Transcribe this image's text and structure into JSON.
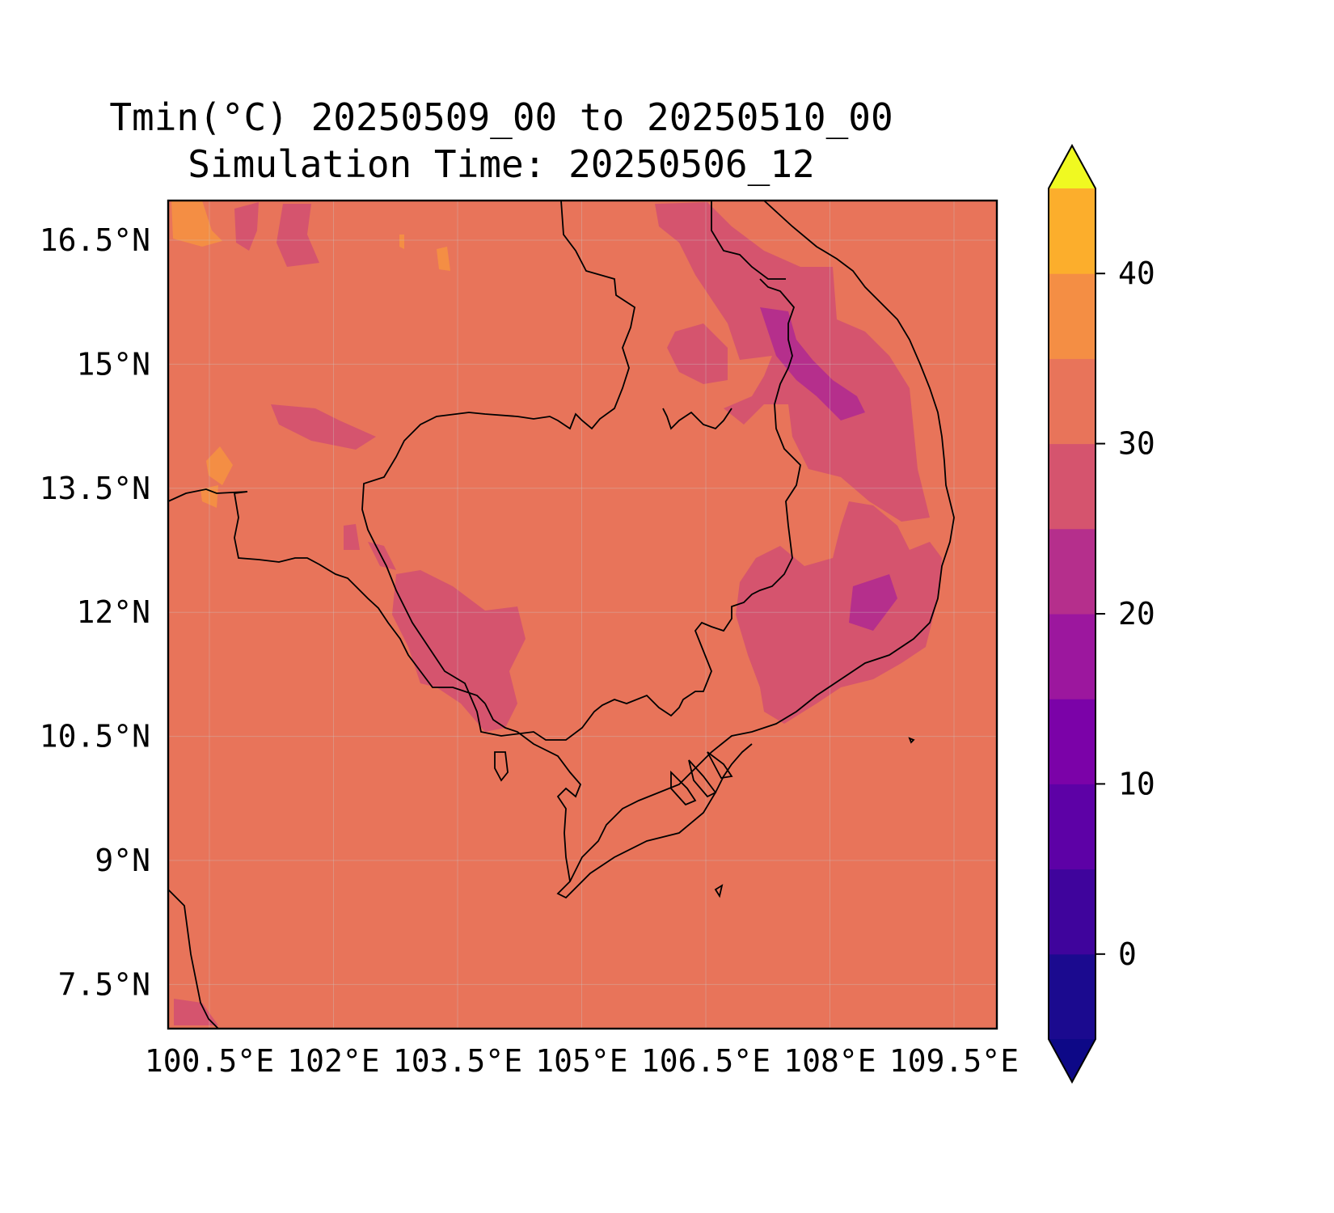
{
  "title": "Tmin(°C) 20250509_00 to 20250510_00",
  "subtitle": "Simulation Time: 20250506_12",
  "map": {
    "lon_ticks": [
      "100.5°E",
      "102°E",
      "103.5°E",
      "105°E",
      "106.5°E",
      "108°E",
      "109.5°E"
    ],
    "lat_ticks": [
      "16.5°N",
      "15°N",
      "13.5°N",
      "12°N",
      "10.5°N",
      "9°N",
      "7.5°N"
    ],
    "lon_range": [
      100,
      110
    ],
    "lat_range": [
      7,
      17
    ],
    "grid": true,
    "background_color": "#e8745a"
  },
  "colorbar": {
    "ticks": [
      "0",
      "10",
      "20",
      "30",
      "40"
    ],
    "levels": [
      -5,
      0,
      5,
      10,
      15,
      20,
      25,
      30,
      35,
      40,
      45
    ],
    "colors": [
      "#1b0a8f",
      "#3f049c",
      "#5d01a6",
      "#7b02a8",
      "#9c179e",
      "#b52f8c",
      "#d5546e",
      "#e8745a",
      "#f48e44",
      "#fcae2c",
      "#f3e524"
    ],
    "under_color": "#0d0887",
    "over_color": "#f0f921",
    "extend": "both"
  }
}
